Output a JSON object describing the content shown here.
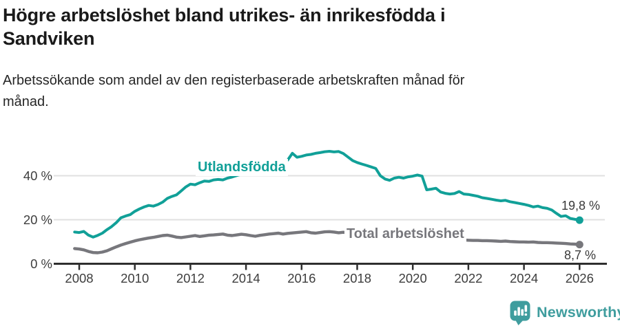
{
  "header": {
    "title": "Högre arbetslöshet bland utrikes- än inrikesfödda i Sandviken",
    "subtitle": "Arbetssökande som andel av den registerbaserade arbetskraften månad för månad."
  },
  "footer": {
    "brand": "Newsworthy"
  },
  "colors": {
    "line_teal": "#11a098",
    "line_gray": "#77777c",
    "logo_teal": "#3f9d9e",
    "axis_dark": "#2e2e2e",
    "axis_text": "#3d3d3d",
    "gridline": "#e0e0e0",
    "end_label_text": "#3a3a3a"
  },
  "chart_data": {
    "type": "line",
    "title": "Högre arbetslöshet bland utrikes- än inrikesfödda i Sandviken",
    "title_lines": [
      "Högre arbetslöshet bland utrikes- än inrikesfödda i",
      "Sandviken"
    ],
    "subtitle": "Arbetssökande som andel av den registerbaserade arbetskraften månad för månad.",
    "subtitle_lines": [
      "Arbetssökande som andel av den registerbaserade arbetskraften månad för",
      "månad."
    ],
    "x_unit": "year, monthly series",
    "xlim": [
      2007.6,
      2026.6
    ],
    "ylim": [
      0,
      54
    ],
    "grid": "horizontal",
    "legend_position": "inline labels on lines",
    "x_ticks": [
      2008,
      2010,
      2012,
      2014,
      2016,
      2018,
      2020,
      2022,
      2024,
      2026
    ],
    "y_ticks": [
      {
        "value": 0,
        "label": "0 %"
      },
      {
        "value": 20,
        "label": "20 %"
      },
      {
        "value": 40,
        "label": "40 %"
      }
    ],
    "x_start": 2007.8333,
    "x_step": 0.16667,
    "series": [
      {
        "key": "utlandsfodda",
        "name": "Utlandsfödda",
        "color": "#11a098",
        "end_value": 19.8,
        "end_label": "19,8 %",
        "values": [
          14.4,
          14.2,
          14.7,
          13.0,
          12.1,
          12.9,
          13.9,
          15.5,
          16.9,
          18.7,
          20.9,
          21.7,
          22.3,
          23.8,
          24.9,
          25.8,
          26.5,
          26.2,
          26.9,
          28.0,
          29.7,
          30.6,
          31.3,
          33.1,
          34.9,
          36.2,
          35.9,
          36.8,
          37.6,
          37.4,
          38.1,
          38.3,
          38.1,
          38.9,
          39.4,
          40.1,
          40.7,
          41.3,
          41.9,
          42.5,
          43.2,
          44.1,
          44.9,
          45.4,
          45.9,
          46.3,
          47.1,
          50.2,
          48.4,
          48.8,
          49.4,
          49.7,
          50.2,
          50.5,
          50.9,
          51.1,
          50.8,
          51.0,
          50.1,
          48.5,
          46.9,
          46.0,
          45.3,
          44.7,
          44.0,
          43.3,
          40.0,
          38.5,
          37.9,
          38.9,
          39.3,
          38.9,
          39.5,
          39.8,
          40.3,
          39.8,
          33.6,
          33.9,
          34.3,
          32.6,
          32.0,
          31.7,
          31.9,
          32.8,
          31.7,
          31.5,
          31.1,
          30.7,
          30.0,
          29.7,
          29.3,
          28.9,
          28.6,
          28.8,
          28.2,
          27.8,
          27.4,
          27.0,
          26.5,
          25.8,
          26.2,
          25.5,
          25.2,
          24.4,
          22.9,
          21.5,
          21.8,
          20.6,
          20.2,
          19.8
        ]
      },
      {
        "key": "total",
        "name": "Total arbetslöshet",
        "color": "#77777c",
        "end_value": 8.7,
        "end_label": "8,7 %",
        "values": [
          6.9,
          6.7,
          6.3,
          5.6,
          5.1,
          5.0,
          5.3,
          5.9,
          6.8,
          7.7,
          8.5,
          9.2,
          9.8,
          10.4,
          10.9,
          11.3,
          11.7,
          12.0,
          12.4,
          12.8,
          13.0,
          12.6,
          12.1,
          11.9,
          12.2,
          12.5,
          12.8,
          12.4,
          12.7,
          13.0,
          13.1,
          13.3,
          13.5,
          13.0,
          12.8,
          13.1,
          13.4,
          13.2,
          12.8,
          12.5,
          12.9,
          13.2,
          13.5,
          13.7,
          13.9,
          13.5,
          13.8,
          14.0,
          14.2,
          14.4,
          14.6,
          14.1,
          13.9,
          14.2,
          14.5,
          14.6,
          14.4,
          14.1,
          14.3,
          14.0,
          13.8,
          13.6,
          13.4,
          13.2,
          13.1,
          12.9,
          12.7,
          12.5,
          12.3,
          12.2,
          12.1,
          12.0,
          11.9,
          11.9,
          12.1,
          12.0,
          11.7,
          11.5,
          11.4,
          11.3,
          11.2,
          11.1,
          11.0,
          10.9,
          10.8,
          10.7,
          10.6,
          10.6,
          10.5,
          10.5,
          10.4,
          10.3,
          10.2,
          10.3,
          10.1,
          10.0,
          9.9,
          9.9,
          9.8,
          9.9,
          9.7,
          9.6,
          9.6,
          9.5,
          9.4,
          9.3,
          9.2,
          9.0,
          8.9,
          8.7
        ]
      }
    ]
  }
}
